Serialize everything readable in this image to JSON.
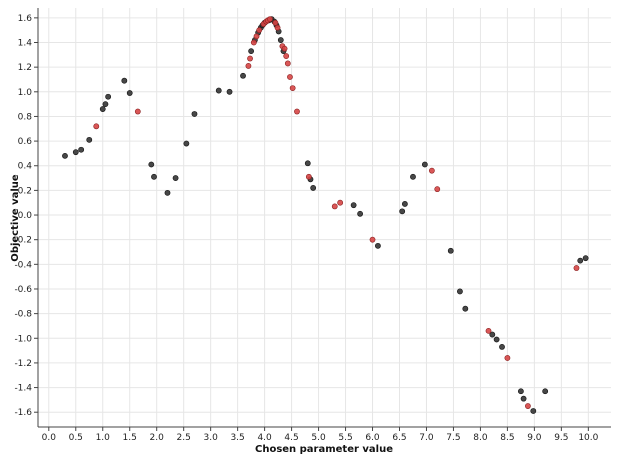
{
  "chart_data": {
    "type": "scatter",
    "title": "",
    "xlabel": "Chosen parameter value",
    "ylabel": "Objective value",
    "xlim": [
      -0.2,
      10.42
    ],
    "ylim": [
      -1.72,
      1.68
    ],
    "grid": true,
    "xticks": [
      0.0,
      0.5,
      1.0,
      1.5,
      2.0,
      2.5,
      3.0,
      3.5,
      4.0,
      4.5,
      5.0,
      5.5,
      6.0,
      6.5,
      7.0,
      7.5,
      8.0,
      8.5,
      9.0,
      9.5,
      10.0
    ],
    "xtick_labels": [
      "0.0",
      "0.5",
      "1.0",
      "1.5",
      "2.0",
      "2.5",
      "3.0",
      "3.5",
      "4.0",
      "4.5",
      "5.0",
      "5.5",
      "6.0",
      "6.5",
      "7.0",
      "7.5",
      "8.0",
      "8.5",
      "9.0",
      "9.5",
      "10.0"
    ],
    "yticks": [
      1.6,
      1.4,
      1.2,
      1.0,
      0.8,
      0.6,
      0.4,
      0.2,
      0.0,
      -0.2,
      -0.4,
      -0.6,
      -0.8,
      -1.0,
      -1.2,
      -1.4,
      -1.6
    ],
    "ytick_labels": [
      "1.6",
      "1.4",
      "1.2",
      "1.0",
      "0.8",
      "0.6",
      "0.4",
      "0.2",
      "0.0",
      "-0.2",
      "-0.4",
      "-0.6",
      "-0.8",
      "-1.0",
      "-1.2",
      "-1.4",
      "-1.6"
    ],
    "series": [
      {
        "color": "#333333",
        "points": [
          [
            0.3,
            0.48
          ],
          [
            0.5,
            0.51
          ],
          [
            0.6,
            0.53
          ],
          [
            0.75,
            0.61
          ],
          [
            1.0,
            0.86
          ],
          [
            1.05,
            0.9
          ],
          [
            1.1,
            0.96
          ],
          [
            1.4,
            1.09
          ],
          [
            1.5,
            0.99
          ],
          [
            1.9,
            0.41
          ],
          [
            1.95,
            0.31
          ],
          [
            2.2,
            0.18
          ],
          [
            2.35,
            0.3
          ],
          [
            2.55,
            0.58
          ],
          [
            2.7,
            0.82
          ],
          [
            3.15,
            1.01
          ],
          [
            3.35,
            1.0
          ],
          [
            3.6,
            1.13
          ],
          [
            3.75,
            1.33
          ],
          [
            3.82,
            1.42
          ],
          [
            3.88,
            1.48
          ],
          [
            3.93,
            1.52
          ],
          [
            3.96,
            1.54
          ],
          [
            4.0,
            1.56
          ],
          [
            4.08,
            1.58
          ],
          [
            4.13,
            1.59
          ],
          [
            4.18,
            1.57
          ],
          [
            4.22,
            1.54
          ],
          [
            4.26,
            1.49
          ],
          [
            4.3,
            1.42
          ],
          [
            4.35,
            1.33
          ],
          [
            4.8,
            0.42
          ],
          [
            4.85,
            0.29
          ],
          [
            4.9,
            0.22
          ],
          [
            5.65,
            0.08
          ],
          [
            5.77,
            0.01
          ],
          [
            6.55,
            0.03
          ],
          [
            6.6,
            0.09
          ],
          [
            6.75,
            0.31
          ],
          [
            6.97,
            0.41
          ],
          [
            6.1,
            -0.25
          ],
          [
            7.45,
            -0.29
          ],
          [
            7.62,
            -0.62
          ],
          [
            7.72,
            -0.76
          ],
          [
            8.22,
            -0.97
          ],
          [
            8.3,
            -1.01
          ],
          [
            8.4,
            -1.07
          ],
          [
            8.75,
            -1.43
          ],
          [
            8.8,
            -1.49
          ],
          [
            8.98,
            -1.59
          ],
          [
            9.2,
            -1.43
          ],
          [
            9.85,
            -0.37
          ],
          [
            9.95,
            -0.35
          ]
        ]
      },
      {
        "color": "#d64545",
        "points": [
          [
            0.88,
            0.72
          ],
          [
            1.65,
            0.84
          ],
          [
            3.7,
            1.21
          ],
          [
            3.73,
            1.27
          ],
          [
            3.8,
            1.4
          ],
          [
            3.85,
            1.45
          ],
          [
            3.9,
            1.5
          ],
          [
            3.98,
            1.55
          ],
          [
            4.03,
            1.57
          ],
          [
            4.06,
            1.58
          ],
          [
            4.1,
            1.59
          ],
          [
            4.2,
            1.56
          ],
          [
            4.24,
            1.52
          ],
          [
            4.33,
            1.37
          ],
          [
            4.37,
            1.35
          ],
          [
            4.4,
            1.29
          ],
          [
            4.43,
            1.23
          ],
          [
            4.47,
            1.12
          ],
          [
            4.52,
            1.03
          ],
          [
            4.6,
            0.84
          ],
          [
            4.82,
            0.31
          ],
          [
            5.3,
            0.07
          ],
          [
            5.4,
            0.1
          ],
          [
            6.0,
            -0.2
          ],
          [
            7.1,
            0.36
          ],
          [
            7.2,
            0.21
          ],
          [
            8.15,
            -0.94
          ],
          [
            8.5,
            -1.16
          ],
          [
            8.88,
            -1.55
          ],
          [
            9.78,
            -0.43
          ]
        ]
      }
    ]
  }
}
